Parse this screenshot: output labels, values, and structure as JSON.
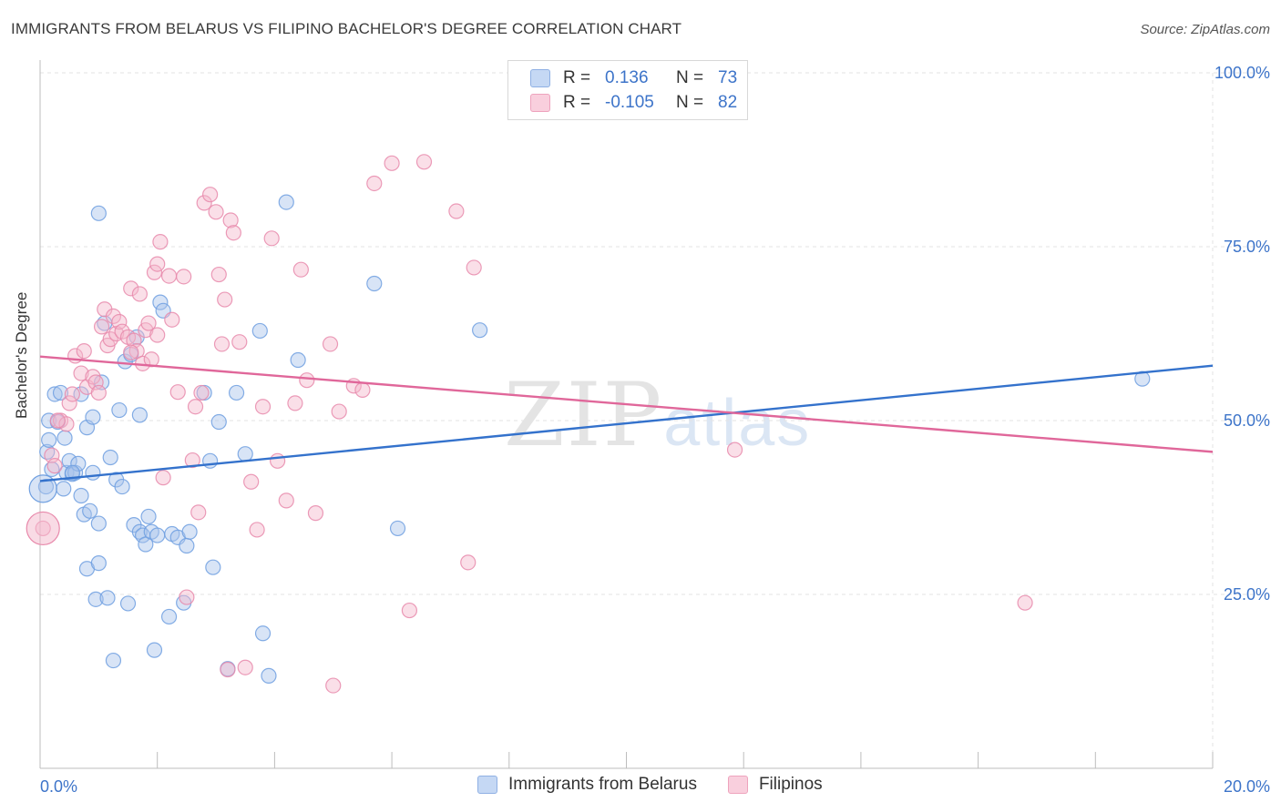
{
  "title": "IMMIGRANTS FROM BELARUS VS FILIPINO BACHELOR'S DEGREE CORRELATION CHART",
  "source": "Source: ZipAtlas.com",
  "watermark": {
    "zip": "ZIP",
    "atlas": "atlas"
  },
  "legend": {
    "r_label": "R =",
    "n_label": "N =",
    "rows": [
      {
        "series": "Immigrants from Belarus",
        "r": "0.136",
        "n": "73",
        "color": "#a8c4ec"
      },
      {
        "series": "Filipinos",
        "r": "-0.105",
        "n": "82",
        "color": "#f4b8cc"
      }
    ]
  },
  "chart_data": {
    "type": "scatter",
    "title": "IMMIGRANTS FROM BELARUS VS FILIPINO BACHELOR'S DEGREE CORRELATION CHART",
    "xlabel": "",
    "ylabel": "Bachelor's Degree",
    "xlim": [
      0,
      20
    ],
    "ylim": [
      0,
      100
    ],
    "x_tick_labels": [
      "0.0%",
      "20.0%"
    ],
    "y_tick_labels": [
      "25.0%",
      "50.0%",
      "75.0%",
      "100.0%"
    ],
    "y_ticks": [
      25,
      50,
      75,
      100
    ],
    "x_minor_ticks": [
      0,
      2,
      4,
      6,
      8,
      10,
      12,
      14,
      16,
      18,
      20
    ],
    "grid": true,
    "legend_position": "top-center",
    "series": [
      {
        "name": "Immigrants from Belarus",
        "color": "#6f9fe0",
        "fill": "#a8c4ec",
        "trend": {
          "x": [
            0,
            20
          ],
          "y": [
            41.3,
            57.9
          ]
        },
        "points": [
          [
            0.1,
            40.5
          ],
          [
            0.12,
            45.5
          ],
          [
            0.15,
            47.2
          ],
          [
            0.15,
            50.0
          ],
          [
            0.2,
            43.0
          ],
          [
            0.25,
            53.8
          ],
          [
            0.3,
            49.8
          ],
          [
            0.35,
            54.0
          ],
          [
            0.4,
            40.2
          ],
          [
            0.42,
            47.5
          ],
          [
            0.45,
            42.5
          ],
          [
            0.5,
            44.2
          ],
          [
            0.55,
            42.3
          ],
          [
            0.6,
            42.5
          ],
          [
            0.65,
            43.8
          ],
          [
            0.7,
            39.2
          ],
          [
            0.75,
            36.5
          ],
          [
            0.8,
            28.7
          ],
          [
            0.8,
            49.0
          ],
          [
            0.85,
            37.0
          ],
          [
            0.9,
            50.5
          ],
          [
            0.95,
            24.3
          ],
          [
            1.0,
            29.5
          ],
          [
            1.0,
            35.2
          ],
          [
            1.05,
            55.5
          ],
          [
            1.1,
            64.0
          ],
          [
            1.15,
            24.5
          ],
          [
            1.2,
            44.7
          ],
          [
            1.25,
            15.5
          ],
          [
            1.3,
            41.5
          ],
          [
            1.35,
            51.5
          ],
          [
            1.4,
            40.5
          ],
          [
            1.45,
            58.5
          ],
          [
            1.5,
            23.7
          ],
          [
            1.55,
            59.5
          ],
          [
            1.6,
            35.0
          ],
          [
            1.65,
            62.0
          ],
          [
            1.7,
            34.0
          ],
          [
            1.7,
            50.8
          ],
          [
            1.75,
            33.5
          ],
          [
            1.8,
            32.2
          ],
          [
            1.85,
            36.2
          ],
          [
            1.9,
            34.0
          ],
          [
            1.95,
            17.0
          ],
          [
            2.0,
            33.5
          ],
          [
            2.05,
            67.0
          ],
          [
            2.1,
            65.8
          ],
          [
            2.2,
            21.8
          ],
          [
            2.25,
            33.7
          ],
          [
            2.35,
            33.2
          ],
          [
            2.45,
            23.8
          ],
          [
            2.5,
            32.0
          ],
          [
            2.55,
            34.0
          ],
          [
            2.8,
            54.0
          ],
          [
            2.9,
            44.2
          ],
          [
            2.95,
            28.9
          ],
          [
            3.05,
            49.8
          ],
          [
            3.2,
            14.3
          ],
          [
            3.35,
            54.0
          ],
          [
            3.5,
            45.2
          ],
          [
            3.75,
            62.9
          ],
          [
            3.8,
            19.4
          ],
          [
            3.9,
            13.3
          ],
          [
            4.2,
            81.4
          ],
          [
            4.4,
            58.7
          ],
          [
            5.7,
            69.7
          ],
          [
            6.1,
            34.5
          ],
          [
            7.5,
            63.0
          ],
          [
            18.8,
            56.0
          ],
          [
            1.0,
            79.8
          ],
          [
            0.7,
            53.8
          ],
          [
            0.55,
            42.5
          ],
          [
            0.9,
            42.5
          ]
        ]
      },
      {
        "name": "Filipinos",
        "color": "#e889ab",
        "fill": "#f4b8cc",
        "trend": {
          "x": [
            0,
            20
          ],
          "y": [
            59.2,
            45.5
          ]
        },
        "points": [
          [
            0.05,
            34.5
          ],
          [
            0.2,
            45.0
          ],
          [
            0.25,
            43.5
          ],
          [
            0.35,
            50.0
          ],
          [
            0.45,
            49.5
          ],
          [
            0.5,
            52.5
          ],
          [
            0.55,
            53.8
          ],
          [
            0.6,
            59.3
          ],
          [
            0.7,
            56.8
          ],
          [
            0.75,
            60.0
          ],
          [
            0.8,
            54.8
          ],
          [
            0.9,
            56.3
          ],
          [
            0.95,
            55.5
          ],
          [
            1.0,
            54.0
          ],
          [
            1.05,
            63.5
          ],
          [
            1.1,
            66.0
          ],
          [
            1.15,
            60.8
          ],
          [
            1.2,
            61.7
          ],
          [
            1.25,
            65.0
          ],
          [
            1.3,
            62.5
          ],
          [
            1.35,
            64.2
          ],
          [
            1.4,
            62.8
          ],
          [
            1.5,
            62.0
          ],
          [
            1.55,
            69.0
          ],
          [
            1.6,
            61.5
          ],
          [
            1.65,
            60.0
          ],
          [
            1.7,
            68.2
          ],
          [
            1.75,
            58.2
          ],
          [
            1.8,
            63.0
          ],
          [
            1.85,
            64.0
          ],
          [
            1.9,
            58.8
          ],
          [
            1.95,
            71.3
          ],
          [
            2.0,
            72.5
          ],
          [
            2.05,
            75.7
          ],
          [
            2.1,
            41.8
          ],
          [
            2.2,
            70.8
          ],
          [
            2.25,
            64.5
          ],
          [
            2.35,
            54.1
          ],
          [
            2.45,
            70.7
          ],
          [
            2.5,
            24.6
          ],
          [
            2.6,
            44.3
          ],
          [
            2.65,
            52.0
          ],
          [
            2.7,
            36.8
          ],
          [
            2.75,
            54.0
          ],
          [
            2.8,
            81.3
          ],
          [
            2.9,
            82.5
          ],
          [
            3.0,
            80.0
          ],
          [
            3.05,
            71.0
          ],
          [
            3.1,
            61.0
          ],
          [
            3.15,
            67.4
          ],
          [
            3.25,
            78.8
          ],
          [
            3.3,
            77.0
          ],
          [
            3.4,
            61.3
          ],
          [
            3.5,
            14.5
          ],
          [
            3.6,
            41.2
          ],
          [
            3.7,
            34.3
          ],
          [
            3.8,
            52.0
          ],
          [
            3.95,
            76.2
          ],
          [
            4.05,
            44.2
          ],
          [
            4.2,
            38.5
          ],
          [
            4.35,
            52.5
          ],
          [
            4.45,
            71.7
          ],
          [
            4.55,
            55.8
          ],
          [
            4.7,
            36.7
          ],
          [
            4.95,
            61.0
          ],
          [
            5.0,
            11.9
          ],
          [
            5.1,
            51.3
          ],
          [
            5.35,
            55.0
          ],
          [
            5.5,
            54.4
          ],
          [
            5.7,
            84.1
          ],
          [
            6.0,
            87.0
          ],
          [
            6.3,
            22.7
          ],
          [
            6.55,
            87.2
          ],
          [
            7.1,
            80.1
          ],
          [
            7.3,
            29.6
          ],
          [
            7.4,
            72.0
          ],
          [
            11.85,
            45.8
          ],
          [
            16.8,
            23.8
          ],
          [
            0.3,
            50.0
          ],
          [
            3.2,
            14.2
          ],
          [
            1.55,
            59.8
          ],
          [
            2.0,
            62.3
          ]
        ]
      }
    ]
  }
}
